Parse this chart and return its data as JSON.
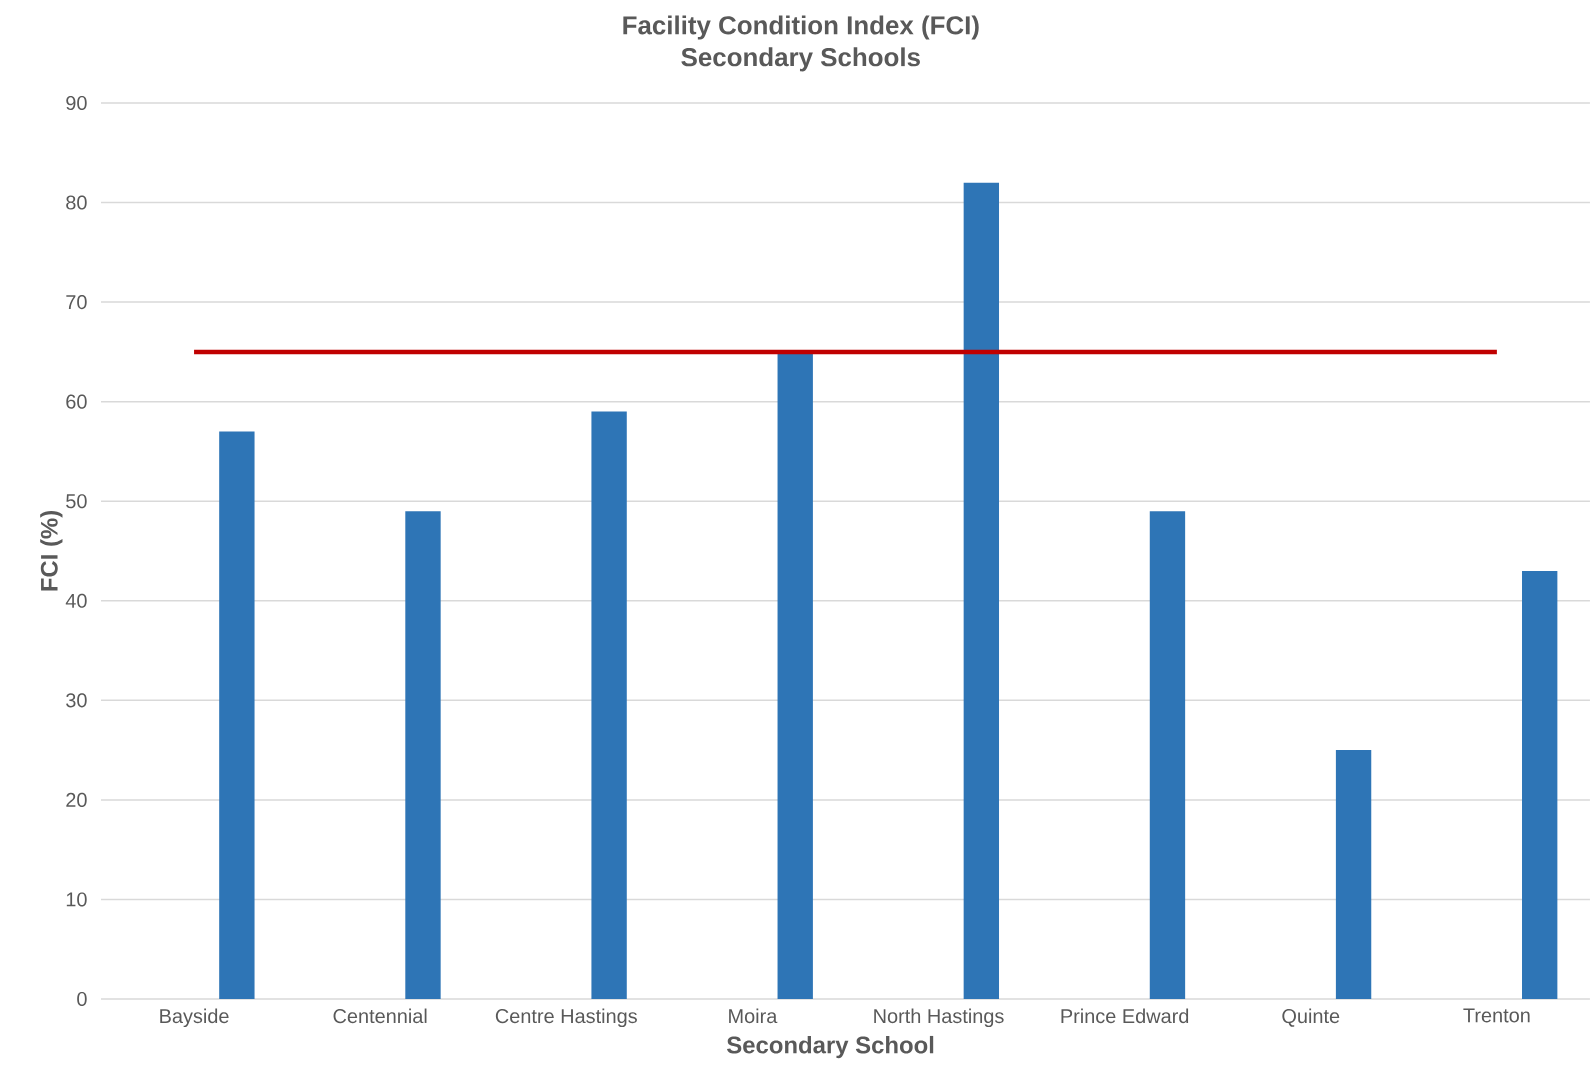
{
  "chart_data": {
    "type": "bar",
    "title": "Facility Condition Index (FCI)",
    "subtitle": "Secondary Schools",
    "xlabel": "Secondary School",
    "ylabel": "FCI (%)",
    "categories": [
      "Bayside",
      "Centennial",
      "Centre Hastings",
      "Moira",
      "North Hastings",
      "Prince Edward",
      "Quinte",
      "Trenton"
    ],
    "series": [
      {
        "color": "#2e75b6",
        "values": [
          57,
          49,
          59,
          65,
          82,
          49,
          25,
          43
        ]
      },
      {
        "type": "line",
        "color": "#c00000",
        "values": [
          65,
          65,
          65,
          65,
          65,
          65,
          65,
          65
        ]
      }
    ],
    "ylim": [
      0,
      90
    ],
    "yticks": [
      0,
      10,
      20,
      30,
      40,
      50,
      60,
      70,
      80,
      90
    ],
    "grid": "y"
  }
}
